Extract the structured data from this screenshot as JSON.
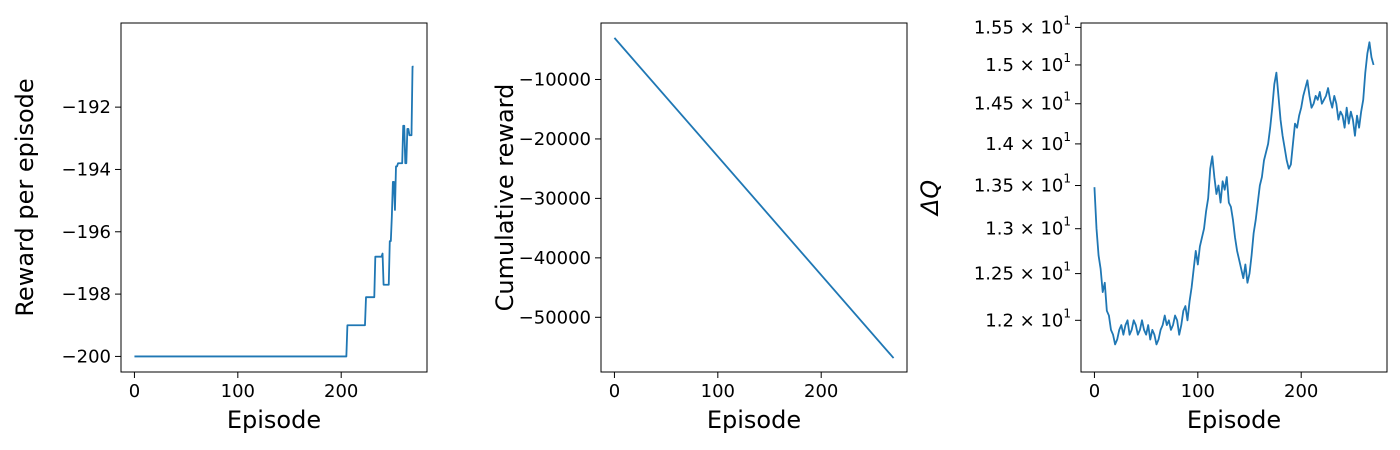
{
  "chart_data": [
    {
      "type": "line",
      "xlabel": "Episode",
      "ylabel": "Reward per episode",
      "xlim": [
        -13,
        283
      ],
      "ylim": [
        -200.5,
        -189.3
      ],
      "xticks": [
        0,
        100,
        200
      ],
      "xtick_labels": [
        "0",
        "100",
        "200"
      ],
      "yticks": [
        -200,
        -198,
        -196,
        -194,
        -192
      ],
      "ytick_labels": [
        "−200",
        "−198",
        "−196",
        "−194",
        "−192"
      ],
      "grid": false,
      "series": [
        {
          "color": "#1f77b4",
          "x": [
            0,
            205,
            206,
            214,
            215,
            223,
            224,
            232,
            233,
            239,
            240,
            241,
            242,
            246,
            247,
            248,
            249,
            250,
            251,
            252,
            253,
            254,
            255,
            256,
            257,
            258,
            259,
            260,
            261,
            262,
            263,
            264,
            265,
            266,
            267,
            268,
            269,
            270
          ],
          "y": [
            -200,
            -200,
            -199,
            -199,
            -199,
            -199,
            -198.1,
            -198.1,
            -196.8,
            -196.8,
            -196.7,
            -197.7,
            -197.7,
            -197.7,
            -196.3,
            -196.3,
            -195.5,
            -194.4,
            -194.4,
            -195.3,
            -193.9,
            -193.9,
            -193.8,
            -193.8,
            -193.8,
            -193.8,
            -193.8,
            -192.6,
            -192.6,
            -193.8,
            -193.8,
            -192.7,
            -192.7,
            -192.9,
            -192.9,
            -192.9,
            -190.7,
            -190.7
          ]
        }
      ]
    },
    {
      "type": "line",
      "xlabel": "Episode",
      "ylabel": "Cumulative reward",
      "xlim": [
        -13,
        283
      ],
      "ylim": [
        -59200,
        -500
      ],
      "xticks": [
        0,
        100,
        200
      ],
      "xtick_labels": [
        "0",
        "100",
        "200"
      ],
      "yticks": [
        -50000,
        -40000,
        -30000,
        -20000,
        -10000
      ],
      "ytick_labels": [
        "−50000",
        "−40000",
        "−30000",
        "−20000",
        "−10000"
      ],
      "grid": false,
      "series": [
        {
          "color": "#1f77b4",
          "x": [
            0,
            270
          ],
          "y": [
            -3000,
            -56850
          ]
        }
      ]
    },
    {
      "type": "line",
      "xlabel": "Episode",
      "ylabel": "ΔQ",
      "yscale": "log",
      "xlim": [
        -13,
        283
      ],
      "ylim": [
        11.47,
        15.56
      ],
      "xticks": [
        0,
        100,
        200
      ],
      "xtick_labels": [
        "0",
        "100",
        "200"
      ],
      "yticks": [
        12.0,
        12.5,
        13.0,
        13.5,
        14.0,
        14.5,
        15.0,
        15.5
      ],
      "ytick_labels": [
        "1.2",
        "1.25",
        "1.3",
        "1.35",
        "1.4",
        "1.45",
        "1.5",
        "1.55"
      ],
      "ytick_suffix": "× 10",
      "ytick_exponent": "1",
      "grid": false,
      "series": [
        {
          "color": "#1f77b4",
          "x": [
            0,
            2,
            4,
            6,
            8,
            10,
            12,
            14,
            16,
            18,
            20,
            22,
            24,
            26,
            28,
            30,
            32,
            34,
            36,
            38,
            40,
            42,
            44,
            46,
            48,
            50,
            52,
            54,
            56,
            58,
            60,
            62,
            64,
            66,
            68,
            70,
            72,
            74,
            76,
            78,
            80,
            82,
            84,
            86,
            88,
            90,
            92,
            94,
            96,
            98,
            100,
            102,
            104,
            106,
            108,
            110,
            112,
            114,
            116,
            118,
            120,
            122,
            124,
            126,
            128,
            130,
            132,
            134,
            136,
            138,
            140,
            142,
            144,
            146,
            148,
            150,
            152,
            154,
            156,
            158,
            160,
            162,
            164,
            166,
            168,
            170,
            172,
            174,
            176,
            178,
            180,
            182,
            184,
            186,
            188,
            190,
            192,
            194,
            196,
            198,
            200,
            202,
            204,
            206,
            208,
            210,
            212,
            214,
            216,
            218,
            220,
            222,
            224,
            226,
            228,
            230,
            232,
            234,
            236,
            238,
            240,
            242,
            244,
            246,
            248,
            250,
            252,
            254,
            256,
            258,
            260,
            262,
            264,
            266,
            268,
            270
          ],
          "y": [
            13.48,
            13.0,
            12.7,
            12.55,
            12.3,
            12.4,
            12.1,
            12.05,
            11.9,
            11.85,
            11.75,
            11.8,
            11.9,
            11.95,
            11.85,
            11.95,
            12.0,
            11.85,
            11.9,
            12.0,
            11.95,
            11.85,
            11.9,
            12.0,
            11.9,
            11.85,
            11.95,
            11.8,
            11.9,
            11.85,
            11.75,
            11.8,
            11.9,
            11.95,
            12.05,
            11.95,
            12.0,
            11.9,
            11.95,
            12.05,
            12.0,
            11.85,
            11.95,
            12.1,
            12.15,
            12.0,
            12.2,
            12.35,
            12.55,
            12.75,
            12.6,
            12.8,
            12.9,
            13.0,
            13.2,
            13.35,
            13.7,
            13.85,
            13.6,
            13.4,
            13.5,
            13.3,
            13.55,
            13.45,
            13.6,
            13.3,
            13.25,
            13.1,
            12.9,
            12.75,
            12.65,
            12.55,
            12.45,
            12.6,
            12.4,
            12.5,
            12.7,
            12.95,
            13.1,
            13.3,
            13.5,
            13.6,
            13.8,
            13.9,
            14.0,
            14.2,
            14.45,
            14.75,
            14.9,
            14.6,
            14.3,
            14.1,
            13.95,
            13.8,
            13.7,
            13.75,
            14.0,
            14.25,
            14.2,
            14.35,
            14.45,
            14.6,
            14.7,
            14.8,
            14.6,
            14.45,
            14.5,
            14.6,
            14.55,
            14.65,
            14.5,
            14.55,
            14.6,
            14.7,
            14.55,
            14.45,
            14.6,
            14.5,
            14.3,
            14.4,
            14.35,
            14.2,
            14.45,
            14.25,
            14.4,
            14.3,
            14.1,
            14.35,
            14.2,
            14.4,
            14.55,
            14.9,
            15.15,
            15.3,
            15.1,
            15.0
          ]
        }
      ]
    }
  ]
}
